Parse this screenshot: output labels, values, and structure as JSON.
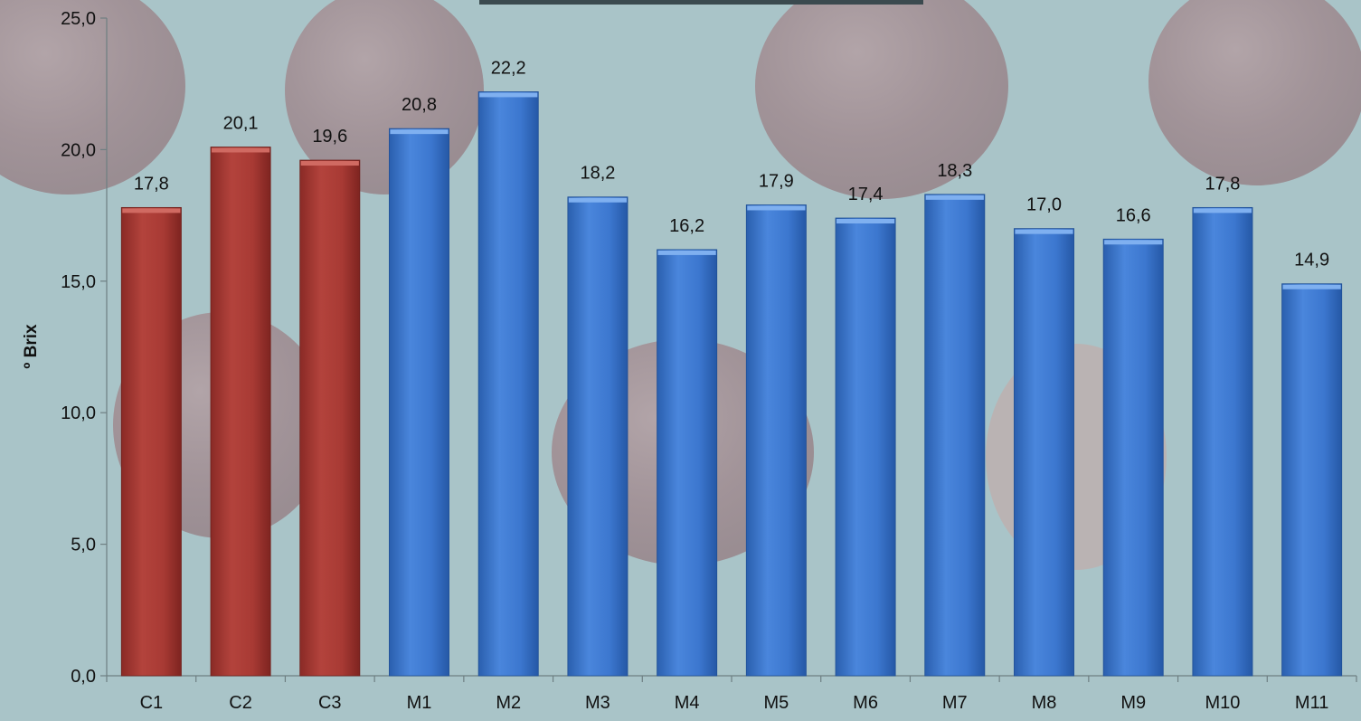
{
  "chart_data": {
    "type": "bar",
    "title": "",
    "xlabel": "",
    "ylabel": "º Brix",
    "ylim": [
      0,
      25
    ],
    "y_ticks": [
      "0,0",
      "5,0",
      "10,0",
      "15,0",
      "20,0",
      "25,0"
    ],
    "y_tick_values": [
      0,
      5,
      10,
      15,
      20,
      25
    ],
    "grid": false,
    "legend": "none",
    "categories": [
      "C1",
      "C2",
      "C3",
      "M1",
      "M2",
      "M3",
      "M4",
      "M5",
      "M6",
      "M7",
      "M8",
      "M9",
      "M10",
      "M11"
    ],
    "values": [
      17.8,
      20.1,
      19.6,
      20.8,
      22.2,
      18.2,
      16.2,
      17.9,
      17.4,
      18.3,
      17.0,
      16.6,
      17.8,
      14.9
    ],
    "data_labels": [
      "17,8",
      "20,1",
      "19,6",
      "20,8",
      "22,2",
      "18,2",
      "16,2",
      "17,9",
      "17,4",
      "18,3",
      "17,0",
      "16,6",
      "17,8",
      "14,9"
    ],
    "bar_colors": [
      "#a83a34",
      "#a83a34",
      "#a83a34",
      "#3c77cf",
      "#3c77cf",
      "#3c77cf",
      "#3c77cf",
      "#3c77cf",
      "#3c77cf",
      "#3c77cf",
      "#3c77cf",
      "#3c77cf",
      "#3c77cf",
      "#3c77cf"
    ],
    "colors": {
      "control": "#a83a34",
      "control_top": "#d06a62",
      "sample": "#3c77cf",
      "sample_top": "#7fb0f0",
      "background": "#a9c4c8",
      "axis": "#6e7f82"
    }
  }
}
